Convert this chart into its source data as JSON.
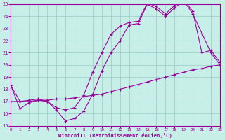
{
  "xlabel": "Windchill (Refroidissement éolien,°C)",
  "bg_color": "#c8eee8",
  "grid_color": "#a0d0cc",
  "line_color": "#990099",
  "xlim": [
    0,
    23
  ],
  "ylim": [
    15,
    25
  ],
  "yticks": [
    15,
    16,
    17,
    18,
    19,
    20,
    21,
    22,
    23,
    24,
    25
  ],
  "xticks": [
    0,
    1,
    2,
    3,
    4,
    5,
    6,
    7,
    8,
    9,
    10,
    11,
    12,
    13,
    14,
    15,
    16,
    17,
    18,
    19,
    20,
    21,
    22,
    23
  ],
  "line1_x": [
    0,
    1,
    2,
    3,
    4,
    5,
    6,
    7,
    8,
    9,
    10,
    11,
    12,
    13,
    14,
    15,
    16,
    17,
    18,
    19,
    20,
    21,
    22,
    23
  ],
  "line1_y": [
    18.3,
    16.4,
    16.9,
    17.1,
    17.0,
    16.3,
    15.4,
    15.6,
    16.2,
    17.6,
    19.5,
    21.0,
    22.0,
    23.3,
    23.4,
    25.0,
    24.6,
    24.0,
    24.7,
    25.3,
    24.2,
    22.6,
    21.0,
    20.0
  ],
  "line2_x": [
    0,
    1,
    2,
    3,
    4,
    5,
    6,
    7,
    8,
    9,
    10,
    11,
    12,
    13,
    14,
    15,
    16,
    17,
    18,
    19,
    20,
    21,
    22,
    23
  ],
  "line2_y": [
    18.3,
    17.0,
    17.1,
    17.2,
    17.0,
    16.5,
    16.3,
    16.5,
    17.5,
    19.4,
    21.0,
    22.5,
    23.2,
    23.5,
    23.6,
    25.1,
    24.8,
    24.2,
    24.9,
    25.4,
    24.4,
    21.0,
    21.2,
    20.2
  ],
  "line3_x": [
    0,
    1,
    2,
    3,
    4,
    5,
    6,
    7,
    8,
    9,
    10,
    11,
    12,
    13,
    14,
    15,
    16,
    17,
    18,
    19,
    20,
    21,
    22,
    23
  ],
  "line3_y": [
    17.0,
    17.0,
    17.0,
    17.1,
    17.1,
    17.2,
    17.2,
    17.3,
    17.4,
    17.5,
    17.6,
    17.8,
    18.0,
    18.2,
    18.4,
    18.6,
    18.8,
    19.0,
    19.2,
    19.4,
    19.6,
    19.7,
    19.9,
    20.0
  ]
}
